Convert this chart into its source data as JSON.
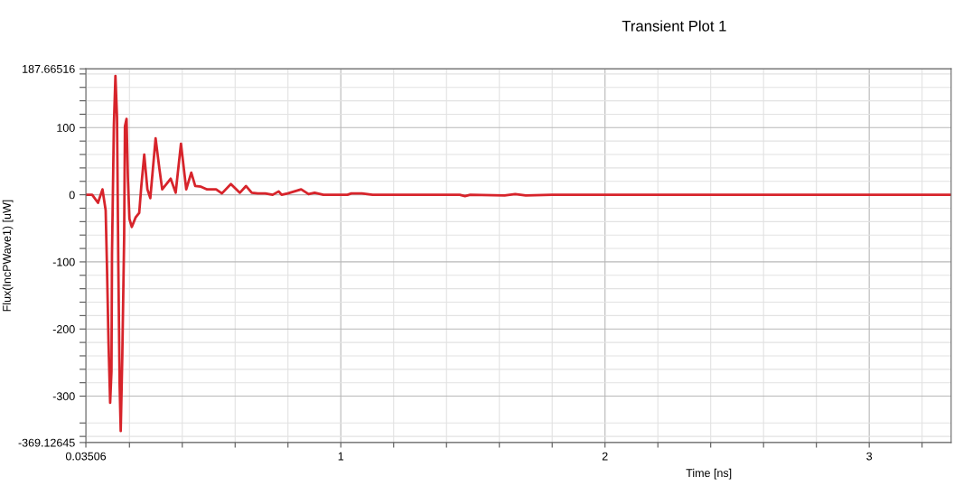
{
  "chart_data": {
    "type": "line",
    "title": "Transient Plot 1",
    "xlabel": "Time [ns]",
    "ylabel": "Flux(IncPWave1) [uW]",
    "x": [
      0.036,
      0.059,
      0.081,
      0.098,
      0.11,
      0.115,
      0.121,
      0.127,
      0.132,
      0.134,
      0.141,
      0.147,
      0.153,
      0.158,
      0.163,
      0.167,
      0.173,
      0.18,
      0.183,
      0.189,
      0.194,
      0.2,
      0.209,
      0.223,
      0.237,
      0.245,
      0.256,
      0.268,
      0.279,
      0.299,
      0.313,
      0.324,
      0.356,
      0.375,
      0.395,
      0.415,
      0.434,
      0.449,
      0.471,
      0.494,
      0.528,
      0.55,
      0.584,
      0.618,
      0.641,
      0.663,
      0.686,
      0.714,
      0.742,
      0.765,
      0.776,
      0.799,
      0.85,
      0.878,
      0.901,
      0.934,
      1.025,
      1.04,
      1.08,
      1.12,
      1.45,
      1.47,
      1.49,
      1.62,
      1.66,
      1.7,
      1.8,
      3.31
    ],
    "series": [
      {
        "color": "#d7242b",
        "values": [
          0,
          0,
          -12,
          8,
          -23,
          -107,
          -223,
          -310,
          -263,
          -89,
          102,
          177,
          115,
          -107,
          -285,
          -352,
          -240,
          -63,
          102,
          113,
          26,
          -36,
          -48,
          -34,
          -27,
          13,
          60,
          8,
          -5,
          84,
          40,
          8,
          24,
          3,
          76,
          8,
          33,
          13,
          12,
          8,
          8,
          2,
          16,
          3,
          13,
          3,
          2,
          2,
          0,
          5,
          0,
          2,
          8,
          1,
          3,
          0,
          0,
          2,
          2,
          0,
          0,
          -2,
          0,
          -1,
          1,
          -1,
          0,
          0
        ]
      }
    ],
    "xlim": [
      0.03506,
      3.31
    ],
    "xticks": [
      0.03506,
      {
        "value": 0.2,
        "label": null
      },
      {
        "value": 0.4,
        "label": null
      },
      {
        "value": 0.6,
        "label": null
      },
      {
        "value": 0.8,
        "label": null
      },
      1,
      {
        "value": 1.2,
        "label": null
      },
      {
        "value": 1.4,
        "label": null
      },
      {
        "value": 1.6,
        "label": null
      },
      {
        "value": 1.8,
        "label": null
      },
      2,
      {
        "value": 2.2,
        "label": null
      },
      {
        "value": 2.4,
        "label": null
      },
      {
        "value": 2.6,
        "label": null
      },
      {
        "value": 2.8,
        "label": null
      },
      3,
      {
        "value": 3.2,
        "label": null
      }
    ],
    "ylim": [
      -369.12645,
      187.66516
    ],
    "yticks": [
      -369.12645,
      {
        "value": -360,
        "label": null
      },
      {
        "value": -340,
        "label": null
      },
      -300,
      {
        "value": -280,
        "label": null
      },
      {
        "value": -260,
        "label": null
      },
      {
        "value": -240,
        "label": null
      },
      {
        "value": -220,
        "label": null
      },
      -200,
      {
        "value": -180,
        "label": null
      },
      {
        "value": -160,
        "label": null
      },
      {
        "value": -140,
        "label": null
      },
      {
        "value": -120,
        "label": null
      },
      -100,
      {
        "value": -80,
        "label": null
      },
      {
        "value": -60,
        "label": null
      },
      {
        "value": -40,
        "label": null
      },
      {
        "value": -20,
        "label": null
      },
      0,
      {
        "value": 20,
        "label": null
      },
      {
        "value": 40,
        "label": null
      },
      {
        "value": 60,
        "label": null
      },
      {
        "value": 80,
        "label": null
      },
      100,
      {
        "value": 120,
        "label": null
      },
      {
        "value": 140,
        "label": null
      },
      {
        "value": 160,
        "label": null
      },
      {
        "value": 180,
        "label": null
      },
      187.66516
    ],
    "grid": true,
    "line_style": "solid"
  }
}
